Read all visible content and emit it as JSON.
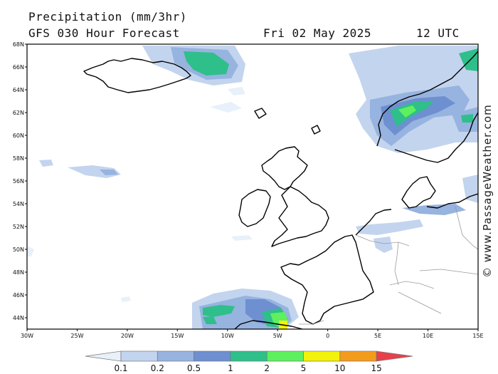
{
  "header": {
    "title": "Precipitation (mm/3hr)",
    "subtitle": "GFS 030 Hour Forecast",
    "date": "Fri 02 May 2025",
    "time": "12 UTC"
  },
  "credit": "© www.PassageWeather.com",
  "map_data": {
    "type": "precipitation-map",
    "lon_range": [
      -30,
      15
    ],
    "lat_range": [
      43,
      68
    ],
    "lat_ticks": [
      "68N",
      "66N",
      "64N",
      "62N",
      "60N",
      "58N",
      "56N",
      "54N",
      "52N",
      "50N",
      "48N",
      "46N",
      "44N"
    ],
    "lon_ticks": [
      "30W",
      "25W",
      "20W",
      "15W",
      "10W",
      "5W",
      "0",
      "5E",
      "10E",
      "15E"
    ],
    "colors": {
      "land_outline": "#000000",
      "border": "#9a9a9a",
      "frame": "#000000"
    }
  },
  "color_scale": {
    "labels": [
      "0.1",
      "0.2",
      "0.5",
      "1",
      "2",
      "5",
      "10",
      "15"
    ],
    "colors": [
      "#e8f0fa",
      "#c3d4ee",
      "#97b3df",
      "#6e8fd0",
      "#2fbf8a",
      "#5ef05e",
      "#f2f20a",
      "#f39b1b",
      "#e8404a"
    ]
  }
}
